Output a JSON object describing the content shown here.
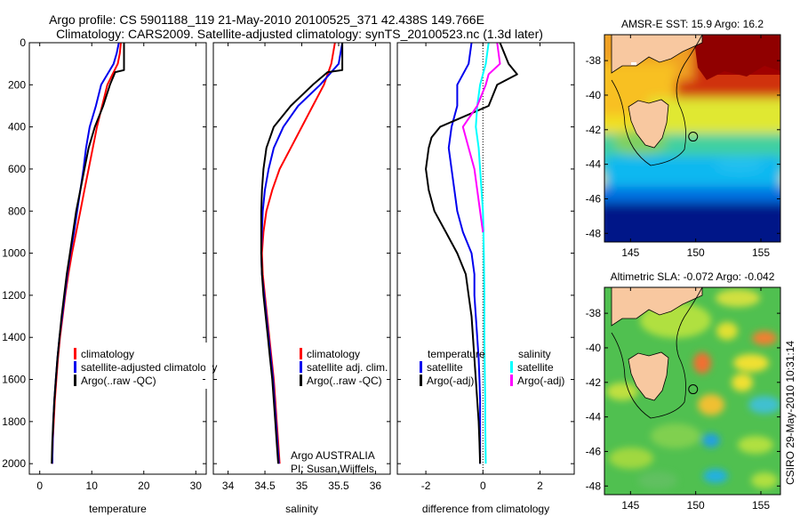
{
  "title_lines": [
    "Argo profile: CS 5901188_119 21-May-2010 20100525_371 42.438S 149.766E",
    "Climatology: CARS2009. Satellite-adjusted climatology: synTS_20100523.nc (1.3d later)"
  ],
  "side_label": "CSIRO 29-May-2010 10:31:14",
  "colors": {
    "red": "#ff0000",
    "blue": "#0000ee",
    "black": "#000000",
    "cyan": "#00ffff",
    "magenta": "#ff00ff",
    "land": "#f8c8a0"
  },
  "chart_data": [
    {
      "type": "line",
      "xlabel": "temperature",
      "ylabel": "",
      "xlim": [
        -2,
        32
      ],
      "ylim": [
        2050,
        0
      ],
      "xticks": [
        0,
        10,
        20,
        30
      ],
      "yticks": [
        0,
        200,
        400,
        600,
        800,
        1000,
        1200,
        1400,
        1600,
        1800,
        2000
      ],
      "show_yticklabels": true,
      "series": [
        {
          "name": "climatology",
          "color": "red",
          "points": [
            [
              15.6,
              0
            ],
            [
              15.4,
              50
            ],
            [
              15.0,
              100
            ],
            [
              14.0,
              150
            ],
            [
              13.0,
              200
            ],
            [
              12.0,
              300
            ],
            [
              11.0,
              400
            ],
            [
              10.2,
              500
            ],
            [
              9.4,
              600
            ],
            [
              8.6,
              700
            ],
            [
              7.8,
              800
            ],
            [
              7.0,
              900
            ],
            [
              6.2,
              1000
            ],
            [
              5.5,
              1100
            ],
            [
              4.9,
              1200
            ],
            [
              4.4,
              1300
            ],
            [
              3.9,
              1400
            ],
            [
              3.5,
              1500
            ],
            [
              3.2,
              1600
            ],
            [
              2.9,
              1700
            ],
            [
              2.7,
              1800
            ],
            [
              2.5,
              1900
            ],
            [
              2.4,
              2000
            ]
          ]
        },
        {
          "name": "satellite-adjusted climatology",
          "color": "blue",
          "points": [
            [
              15.2,
              0
            ],
            [
              14.8,
              50
            ],
            [
              14.2,
              100
            ],
            [
              13.0,
              150
            ],
            [
              11.8,
              200
            ],
            [
              10.8,
              300
            ],
            [
              9.6,
              400
            ],
            [
              8.9,
              500
            ],
            [
              8.4,
              600
            ],
            [
              7.8,
              700
            ],
            [
              7.2,
              800
            ],
            [
              6.6,
              900
            ],
            [
              5.9,
              1000
            ],
            [
              5.3,
              1100
            ],
            [
              4.8,
              1200
            ],
            [
              4.3,
              1300
            ],
            [
              3.8,
              1400
            ],
            [
              3.4,
              1500
            ],
            [
              3.1,
              1600
            ],
            [
              2.8,
              1700
            ],
            [
              2.6,
              1800
            ],
            [
              2.5,
              1900
            ],
            [
              2.4,
              2000
            ]
          ]
        },
        {
          "name": "Argo(..raw -QC)",
          "color": "black",
          "points": [
            [
              16.2,
              0
            ],
            [
              16.2,
              50
            ],
            [
              16.2,
              100
            ],
            [
              16.2,
              130
            ],
            [
              14.5,
              140
            ],
            [
              13.5,
              200
            ],
            [
              12.2,
              300
            ],
            [
              10.6,
              400
            ],
            [
              9.4,
              500
            ],
            [
              8.6,
              600
            ],
            [
              7.8,
              700
            ],
            [
              7.0,
              800
            ],
            [
              6.4,
              900
            ],
            [
              5.8,
              1000
            ],
            [
              5.2,
              1100
            ],
            [
              4.7,
              1200
            ],
            [
              4.2,
              1300
            ],
            [
              3.8,
              1400
            ],
            [
              3.4,
              1500
            ],
            [
              3.1,
              1600
            ],
            [
              2.8,
              1700
            ],
            [
              2.6,
              1800
            ],
            [
              2.4,
              1900
            ],
            [
              2.3,
              2000
            ]
          ]
        }
      ],
      "legend": {
        "placement": "lower-middle",
        "entries": [
          {
            "text": "climatology",
            "color": "red"
          },
          {
            "text": "satellite-adjusted climatology",
            "color": "blue"
          },
          {
            "text": "Argo(..raw -QC)",
            "color": "black"
          }
        ]
      }
    },
    {
      "type": "line",
      "xlabel": "salinity",
      "ylabel": "",
      "xlim": [
        33.8,
        36.2
      ],
      "ylim": [
        2050,
        0
      ],
      "xticks": [
        34,
        34.5,
        35,
        35.5,
        36
      ],
      "yticks": [
        0,
        200,
        400,
        600,
        800,
        1000,
        1200,
        1400,
        1600,
        1800,
        2000
      ],
      "show_yticklabels": false,
      "series": [
        {
          "name": "climatology",
          "color": "red",
          "points": [
            [
              35.45,
              0
            ],
            [
              35.4,
              100
            ],
            [
              35.3,
              200
            ],
            [
              35.15,
              300
            ],
            [
              35.0,
              400
            ],
            [
              34.85,
              500
            ],
            [
              34.7,
              600
            ],
            [
              34.6,
              700
            ],
            [
              34.52,
              800
            ],
            [
              34.48,
              900
            ],
            [
              34.46,
              1000
            ],
            [
              34.47,
              1100
            ],
            [
              34.5,
              1200
            ],
            [
              34.53,
              1300
            ],
            [
              34.56,
              1400
            ],
            [
              34.59,
              1500
            ],
            [
              34.62,
              1600
            ],
            [
              34.64,
              1700
            ],
            [
              34.66,
              1800
            ],
            [
              34.68,
              1900
            ],
            [
              34.7,
              2000
            ]
          ]
        },
        {
          "name": "satellite adj. clim.",
          "color": "blue",
          "points": [
            [
              35.55,
              0
            ],
            [
              35.5,
              100
            ],
            [
              35.25,
              200
            ],
            [
              34.95,
              300
            ],
            [
              34.75,
              400
            ],
            [
              34.62,
              500
            ],
            [
              34.55,
              600
            ],
            [
              34.5,
              700
            ],
            [
              34.47,
              800
            ],
            [
              34.46,
              900
            ],
            [
              34.45,
              1000
            ],
            [
              34.46,
              1100
            ],
            [
              34.49,
              1200
            ],
            [
              34.52,
              1300
            ],
            [
              34.55,
              1400
            ],
            [
              34.58,
              1500
            ],
            [
              34.61,
              1600
            ],
            [
              34.63,
              1700
            ],
            [
              34.65,
              1800
            ],
            [
              34.67,
              1900
            ],
            [
              34.69,
              2000
            ]
          ]
        },
        {
          "name": "Argo(..raw -QC)",
          "color": "black",
          "points": [
            [
              35.55,
              0
            ],
            [
              35.55,
              130
            ],
            [
              35.35,
              140
            ],
            [
              35.15,
              200
            ],
            [
              34.85,
              300
            ],
            [
              34.62,
              400
            ],
            [
              34.52,
              500
            ],
            [
              34.48,
              600
            ],
            [
              34.46,
              700
            ],
            [
              34.45,
              800
            ],
            [
              34.45,
              900
            ],
            [
              34.45,
              1000
            ],
            [
              34.46,
              1100
            ],
            [
              34.48,
              1200
            ],
            [
              34.51,
              1300
            ],
            [
              34.54,
              1400
            ],
            [
              34.57,
              1500
            ],
            [
              34.6,
              1600
            ],
            [
              34.62,
              1700
            ],
            [
              34.64,
              1800
            ],
            [
              34.66,
              1900
            ],
            [
              34.68,
              2000
            ]
          ]
        }
      ],
      "legend": {
        "placement": "lower-middle",
        "entries": [
          {
            "text": "climatology",
            "color": "red"
          },
          {
            "text": "satellite adj. clim.",
            "color": "blue"
          },
          {
            "text": "Argo(..raw -QC)",
            "color": "black"
          }
        ]
      },
      "annotation": [
        "Argo AUSTRALIA",
        "PI: Susan Wijffels"
      ]
    },
    {
      "type": "line",
      "xlabel": "difference from climatology",
      "ylabel": "",
      "xlim": [
        -3,
        3.2
      ],
      "ylim": [
        2050,
        0
      ],
      "xticks": [
        -2,
        0,
        2
      ],
      "yticks": [
        0,
        200,
        400,
        600,
        800,
        1000,
        1200,
        1400,
        1600,
        1800,
        2000
      ],
      "show_yticklabels": false,
      "zero_line": true,
      "series": [
        {
          "name": "temperature satellite",
          "color": "blue",
          "points": [
            [
              -0.4,
              0
            ],
            [
              -0.5,
              100
            ],
            [
              -0.9,
              200
            ],
            [
              -0.9,
              300
            ],
            [
              -1.1,
              400
            ],
            [
              -1.2,
              500
            ],
            [
              -1.1,
              600
            ],
            [
              -1.0,
              700
            ],
            [
              -0.9,
              800
            ],
            [
              -0.7,
              900
            ],
            [
              -0.4,
              1000
            ],
            [
              -0.3,
              1100
            ],
            [
              -0.3,
              1200
            ],
            [
              -0.25,
              1300
            ],
            [
              -0.2,
              1400
            ],
            [
              -0.15,
              1500
            ],
            [
              -0.12,
              1600
            ],
            [
              -0.1,
              1700
            ],
            [
              -0.1,
              1800
            ],
            [
              -0.1,
              1900
            ],
            [
              -0.1,
              2000
            ]
          ]
        },
        {
          "name": "temperature Argo(-adj)",
          "color": "black",
          "points": [
            [
              0.6,
              0
            ],
            [
              0.9,
              100
            ],
            [
              1.2,
              150
            ],
            [
              0.5,
              200
            ],
            [
              0.2,
              300
            ],
            [
              -1.5,
              400
            ],
            [
              -1.8,
              450
            ],
            [
              -1.9,
              500
            ],
            [
              -2.0,
              600
            ],
            [
              -1.9,
              700
            ],
            [
              -1.7,
              800
            ],
            [
              -1.3,
              900
            ],
            [
              -0.9,
              1000
            ],
            [
              -0.6,
              1100
            ],
            [
              -0.5,
              1200
            ],
            [
              -0.4,
              1300
            ],
            [
              -0.35,
              1400
            ],
            [
              -0.3,
              1500
            ],
            [
              -0.25,
              1600
            ],
            [
              -0.2,
              1700
            ],
            [
              -0.15,
              1800
            ],
            [
              -0.12,
              1900
            ],
            [
              -0.1,
              2000
            ]
          ]
        },
        {
          "name": "salinity satellite",
          "color": "cyan",
          "points": [
            [
              0.2,
              0
            ],
            [
              0.1,
              100
            ],
            [
              -0.1,
              200
            ],
            [
              -0.2,
              300
            ],
            [
              -0.25,
              400
            ],
            [
              -0.15,
              500
            ],
            [
              -0.1,
              600
            ],
            [
              -0.05,
              700
            ],
            [
              0.0,
              800
            ],
            [
              0.02,
              900
            ],
            [
              0.03,
              1000
            ],
            [
              0.04,
              1100
            ],
            [
              0.05,
              1200
            ],
            [
              0.05,
              1300
            ],
            [
              0.05,
              1400
            ],
            [
              0.06,
              1500
            ],
            [
              0.07,
              1600
            ],
            [
              0.08,
              1700
            ],
            [
              0.08,
              1800
            ],
            [
              0.09,
              1900
            ],
            [
              0.1,
              2000
            ]
          ]
        },
        {
          "name": "salinity Argo(-adj)",
          "color": "magenta",
          "points": [
            [
              0.5,
              0
            ],
            [
              0.6,
              100
            ],
            [
              0.2,
              150
            ],
            [
              0.1,
              200
            ],
            [
              -0.2,
              300
            ],
            [
              -0.7,
              400
            ],
            [
              -0.5,
              500
            ],
            [
              -0.3,
              600
            ],
            [
              -0.2,
              700
            ],
            [
              -0.1,
              800
            ],
            [
              0.0,
              900
            ]
          ]
        }
      ],
      "legend": {
        "placement": "lower-middle",
        "headers": [
          "temperature",
          "salinity"
        ],
        "entries": [
          {
            "text": "satellite",
            "color": "blue",
            "col": 0
          },
          {
            "text": "Argo(-adj)",
            "color": "black",
            "col": 0
          },
          {
            "text": "satellite",
            "color": "cyan",
            "col": 1
          },
          {
            "text": "Argo(-adj)",
            "color": "magenta",
            "col": 1
          }
        ]
      }
    },
    {
      "type": "heatmap",
      "title": "AMSR-E SST: 15.9 Argo: 16.2",
      "xlim": [
        143,
        156.5
      ],
      "ylim": [
        -48.5,
        -36.5
      ],
      "xticks": [
        145,
        150,
        155
      ],
      "yticks": [
        -38,
        -40,
        -42,
        -44,
        -46,
        -48
      ],
      "profile_marker": [
        149.8,
        -42.4
      ]
    },
    {
      "type": "heatmap",
      "title": "Altimetric SLA: -0.072 Argo: -0.042",
      "xlim": [
        143,
        156.5
      ],
      "ylim": [
        -48.5,
        -36.5
      ],
      "xticks": [
        145,
        150,
        155
      ],
      "yticks": [
        -38,
        -40,
        -42,
        -44,
        -46,
        -48
      ],
      "profile_marker": [
        149.8,
        -42.4
      ]
    }
  ]
}
